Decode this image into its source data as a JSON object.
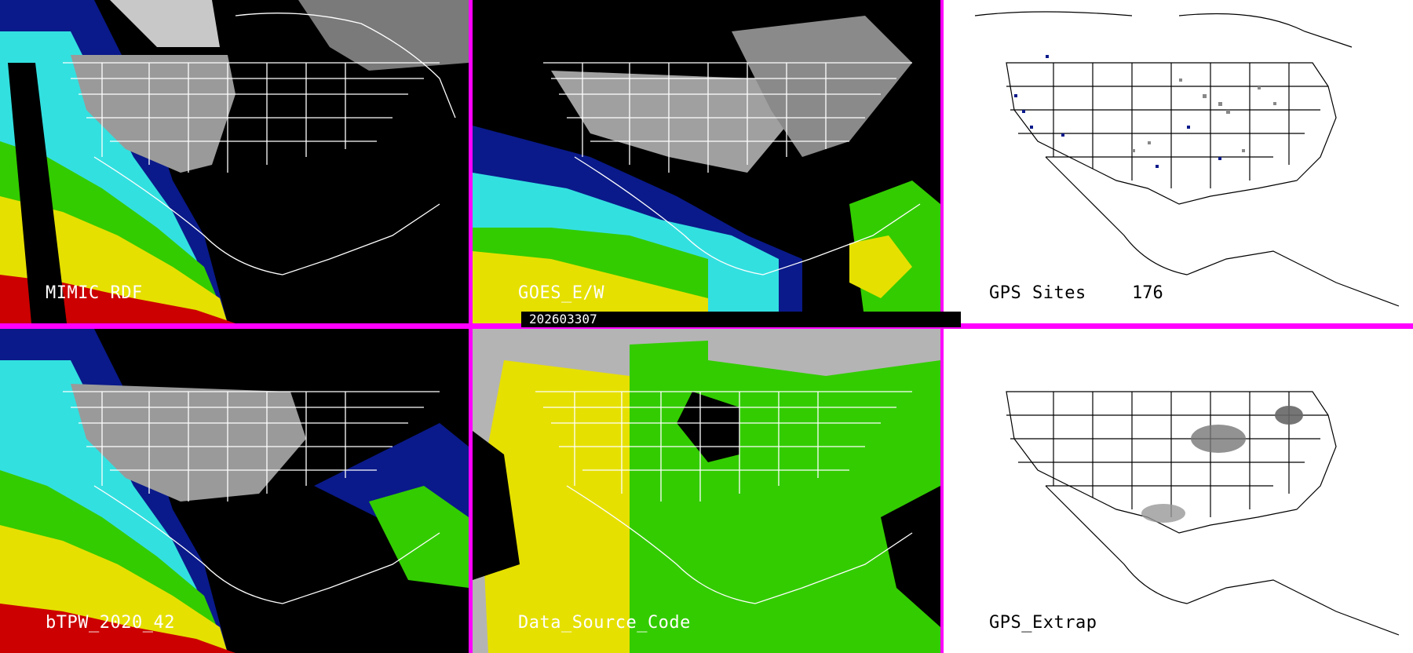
{
  "panels": {
    "p1": {
      "label": "MIMIC RDF"
    },
    "p2": {
      "label": "GOES_E/W"
    },
    "p3": {
      "label": "GPS Sites",
      "count": "176"
    },
    "p4": {
      "label": "bTPW_2020_42"
    },
    "p5": {
      "label": "Data_Source_Code"
    },
    "p6": {
      "label": "GPS_Extrap"
    }
  },
  "timestamp": "202603307",
  "colors": {
    "divider": "#ff00ff",
    "land_gray": "#b4b4b4",
    "moist_green": "#33cc00",
    "moist_yellow": "#e6e000",
    "moist_red": "#cc0000",
    "moist_cyan": "#33e0e0",
    "moist_blue": "#0a1a8a"
  }
}
